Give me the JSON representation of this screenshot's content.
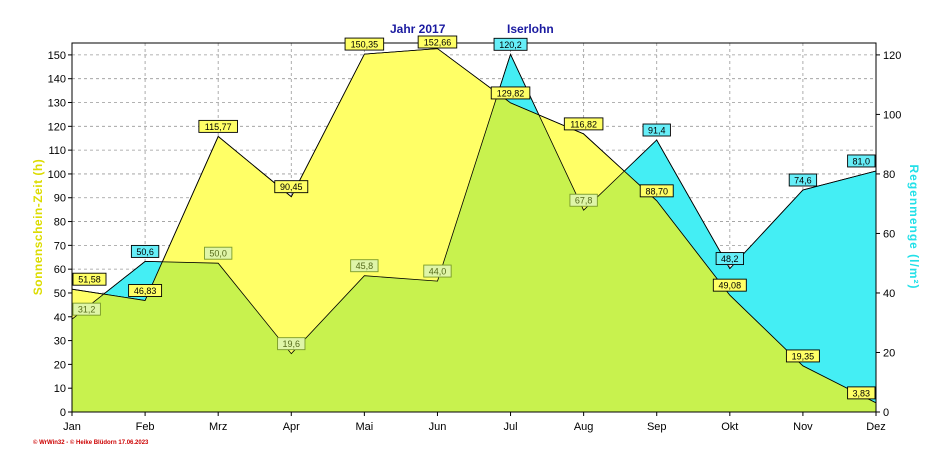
{
  "header": {
    "title_year": "Jahr  2017",
    "title_place": "Iserlohn"
  },
  "footer": {
    "credit": "© WrWin32 - © Heike Blüdorn  17.06.2023"
  },
  "colors": {
    "sunshine": "#ffff66",
    "rain": "#44eef4",
    "overlap": "#c8f24e",
    "left_axis_label": "#dcdc00",
    "right_axis_label": "#22e0e8",
    "title": "#1a1aa0",
    "footer": "#cc0000"
  },
  "chart_data": {
    "type": "area",
    "categories": [
      "Jan",
      "Feb",
      "Mrz",
      "Apr",
      "Mai",
      "Jun",
      "Jul",
      "Aug",
      "Sep",
      "Okt",
      "Nov",
      "Dez"
    ],
    "ylabel": "Sonnenschein-Zeit  (h)",
    "y2label": "Regenmenge  (l/m²)",
    "ylim": [
      0,
      155
    ],
    "y2lim": [
      0,
      124
    ],
    "yticks": [
      0,
      10,
      20,
      30,
      40,
      50,
      60,
      70,
      80,
      90,
      100,
      110,
      120,
      130,
      140,
      150
    ],
    "y2ticks": [
      0,
      20,
      40,
      60,
      80,
      100,
      120
    ],
    "grid": true,
    "series": [
      {
        "axis": "left",
        "values": [
          51.58,
          46.83,
          115.77,
          90.45,
          150.35,
          152.66,
          129.82,
          116.82,
          88.7,
          49.08,
          19.35,
          3.83
        ],
        "labels": [
          "51,58",
          "46,83",
          "115,77",
          "90,45",
          "150,35",
          "152,66",
          "129,82",
          "116,82",
          "88,70",
          "49,08",
          "19,35",
          "3,83"
        ]
      },
      {
        "axis": "right",
        "values": [
          31.2,
          50.6,
          50.0,
          19.6,
          45.8,
          44.0,
          120.2,
          67.8,
          91.4,
          48.2,
          74.6,
          81.0
        ],
        "labels": [
          "31,2",
          "50,6",
          "50,0",
          "19,6",
          "45,8",
          "44,0",
          "120,2",
          "67,8",
          "91,4",
          "48,2",
          "74,6",
          "81,0"
        ]
      }
    ]
  }
}
